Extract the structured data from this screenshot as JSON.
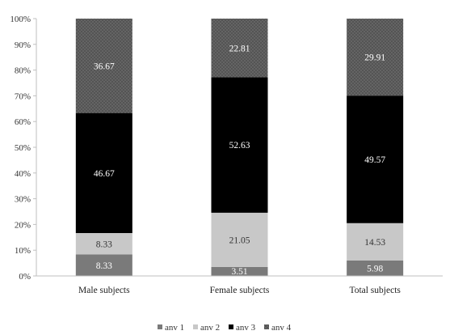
{
  "chart_data": {
    "type": "bar",
    "stacked": true,
    "percent_stacked": true,
    "categories": [
      "Male subjects",
      "Female subjects",
      "Total subjects"
    ],
    "series": [
      {
        "name": "anv 1",
        "values": [
          8.33,
          3.51,
          5.98
        ],
        "color": "#7a7a7a",
        "pattern": "none",
        "label_color": "#ffffff"
      },
      {
        "name": "anv 2",
        "values": [
          8.33,
          21.05,
          14.53
        ],
        "color": "#c8c8c8",
        "pattern": "none",
        "label_color": "#333333"
      },
      {
        "name": "anv 3",
        "values": [
          46.67,
          52.63,
          49.57
        ],
        "color": "#000000",
        "pattern": "none",
        "label_color": "#ffffff"
      },
      {
        "name": "anv 4",
        "values": [
          36.67,
          22.81,
          29.91
        ],
        "color": "#545454",
        "pattern": "dots",
        "label_color": "#ffffff"
      }
    ],
    "data_labels": [
      [
        "8.33",
        "3.51",
        "5.98"
      ],
      [
        "8.33",
        "21.05",
        "14.53"
      ],
      [
        "46.67",
        "52.63",
        "49.57"
      ],
      [
        "36.67",
        "22.81",
        "29.91"
      ]
    ],
    "y_ticks": [
      "0%",
      "10%",
      "20%",
      "30%",
      "40%",
      "50%",
      "60%",
      "70%",
      "80%",
      "90%",
      "100%"
    ],
    "ylim": [
      0,
      100
    ],
    "grid": false,
    "legend_position": "bottom"
  }
}
